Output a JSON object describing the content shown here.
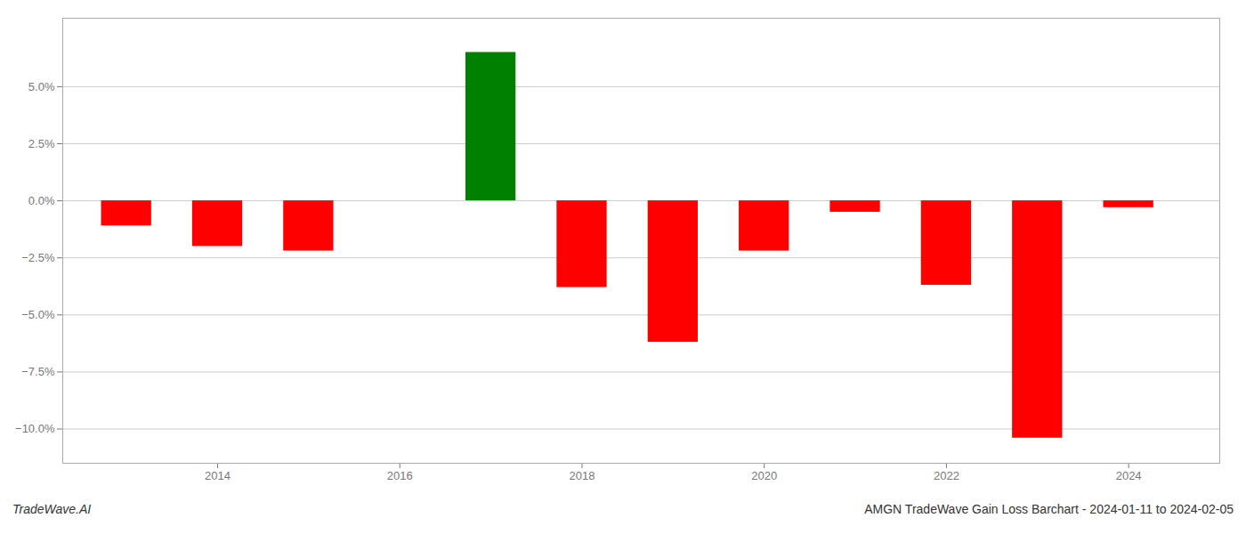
{
  "chart_data": {
    "type": "bar",
    "title": "AMGN TradeWave Gain Loss Barchart - 2024-01-11 to 2024-02-05",
    "annotations": [
      "TradeWave.AI"
    ],
    "x": [
      2013,
      2014,
      2015,
      2017,
      2018,
      2019,
      2020,
      2021,
      2022,
      2023,
      2024
    ],
    "values": [
      -1.1,
      -2.0,
      -2.2,
      6.5,
      -3.8,
      -6.2,
      -2.2,
      -0.5,
      -3.7,
      -10.4,
      -0.3
    ],
    "colors": [
      "#FF0000",
      "#FF0000",
      "#FF0000",
      "#008000",
      "#FF0000",
      "#FF0000",
      "#FF0000",
      "#FF0000",
      "#FF0000",
      "#FF0000",
      "#FF0000"
    ],
    "xlim": [
      2012.3,
      2025.0
    ],
    "xticks": [
      2014,
      2016,
      2018,
      2020,
      2022,
      2024
    ],
    "ylim": [
      -11.5,
      8.0
    ],
    "yticks": [
      {
        "value": -10.0,
        "label": "−10.0%"
      },
      {
        "value": -7.5,
        "label": "−7.5%"
      },
      {
        "value": -5.0,
        "label": "−5.0%"
      },
      {
        "value": -2.5,
        "label": "−2.5%"
      },
      {
        "value": 0.0,
        "label": "0.0%"
      },
      {
        "value": 2.5,
        "label": "2.5%"
      },
      {
        "value": 5.0,
        "label": "5.0%"
      }
    ],
    "grid": true
  }
}
